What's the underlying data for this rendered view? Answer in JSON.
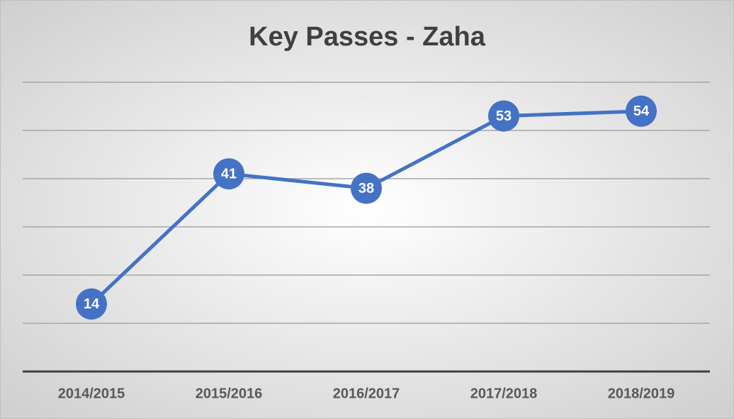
{
  "chart_data": {
    "type": "line",
    "title": "Key Passes - Zaha",
    "categories": [
      "2014/2015",
      "2015/2016",
      "2016/2017",
      "2017/2018",
      "2018/2019"
    ],
    "values": [
      14,
      41,
      38,
      53,
      54
    ],
    "color": "#4472c4",
    "ylim": [
      0,
      60
    ],
    "yticks": [
      0,
      10,
      20,
      30,
      40,
      50,
      60
    ],
    "grid": true
  }
}
